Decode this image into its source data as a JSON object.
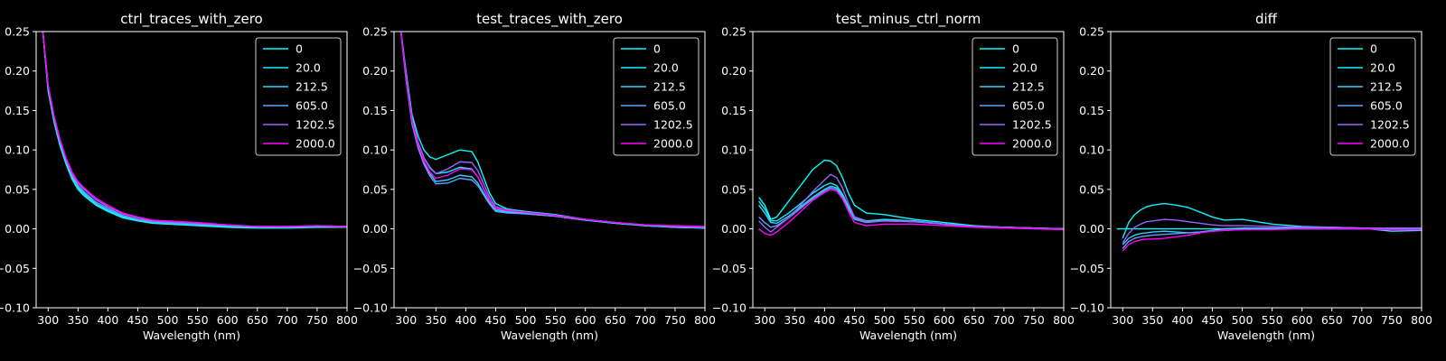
{
  "chart_data": [
    {
      "type": "line",
      "title": "ctrl_traces_with_zero",
      "xlabel": "Wavelength (nm)",
      "ylabel": "",
      "xlim": [
        280,
        800
      ],
      "ylim": [
        -0.1,
        0.25
      ],
      "xticks": [
        300,
        350,
        400,
        450,
        500,
        550,
        600,
        650,
        700,
        750,
        800
      ],
      "yticks": [
        -0.1,
        -0.05,
        0.0,
        0.05,
        0.1,
        0.15,
        0.2,
        0.25
      ],
      "ytick_labels": [
        "−0.10",
        "−0.05",
        "0.00",
        "0.05",
        "0.10",
        "0.15",
        "0.20",
        "0.25"
      ],
      "legend": "top-right",
      "x": [
        290,
        300,
        310,
        320,
        330,
        340,
        350,
        360,
        380,
        400,
        425,
        450,
        475,
        500,
        550,
        600,
        650,
        700,
        750,
        800
      ],
      "series": [
        {
          "name": "0",
          "color": "#00ffff",
          "values": [
            0.26,
            0.175,
            0.135,
            0.105,
            0.082,
            0.063,
            0.05,
            0.042,
            0.03,
            0.022,
            0.014,
            0.01,
            0.007,
            0.006,
            0.004,
            0.002,
            0.001,
            0.001,
            0.002,
            0.002
          ]
        },
        {
          "name": "20.0",
          "color": "#10efff",
          "values": [
            0.26,
            0.177,
            0.137,
            0.107,
            0.084,
            0.065,
            0.052,
            0.044,
            0.031,
            0.023,
            0.015,
            0.011,
            0.008,
            0.007,
            0.005,
            0.003,
            0.002,
            0.002,
            0.003,
            0.002
          ]
        },
        {
          "name": "212.5",
          "color": "#30cfff",
          "values": [
            0.26,
            0.178,
            0.138,
            0.108,
            0.085,
            0.066,
            0.053,
            0.045,
            0.032,
            0.024,
            0.016,
            0.011,
            0.008,
            0.007,
            0.005,
            0.004,
            0.002,
            0.002,
            0.003,
            0.002
          ]
        },
        {
          "name": "605.0",
          "color": "#60a0ff",
          "values": [
            0.26,
            0.18,
            0.14,
            0.11,
            0.087,
            0.068,
            0.055,
            0.047,
            0.034,
            0.026,
            0.017,
            0.012,
            0.009,
            0.008,
            0.006,
            0.004,
            0.003,
            0.002,
            0.004,
            0.003
          ]
        },
        {
          "name": "1202.5",
          "color": "#a060ff",
          "values": [
            0.26,
            0.182,
            0.142,
            0.112,
            0.089,
            0.07,
            0.058,
            0.05,
            0.037,
            0.028,
            0.019,
            0.014,
            0.01,
            0.009,
            0.007,
            0.005,
            0.003,
            0.003,
            0.004,
            0.003
          ]
        },
        {
          "name": "2000.0",
          "color": "#ff00ff",
          "values": [
            0.26,
            0.183,
            0.143,
            0.113,
            0.09,
            0.072,
            0.06,
            0.052,
            0.039,
            0.03,
            0.02,
            0.015,
            0.011,
            0.01,
            0.008,
            0.005,
            0.003,
            0.003,
            0.004,
            0.003
          ]
        }
      ]
    },
    {
      "type": "line",
      "title": "test_traces_with_zero",
      "xlabel": "Wavelength (nm)",
      "ylabel": "",
      "xlim": [
        280,
        800
      ],
      "ylim": [
        -0.1,
        0.25
      ],
      "xticks": [
        300,
        350,
        400,
        450,
        500,
        550,
        600,
        650,
        700,
        750,
        800
      ],
      "yticks": [
        -0.1,
        -0.05,
        0.0,
        0.05,
        0.1,
        0.15,
        0.2,
        0.25
      ],
      "ytick_labels": [
        "−0.10",
        "−0.05",
        "0.00",
        "0.05",
        "0.10",
        "0.15",
        "0.20",
        "0.25"
      ],
      "legend": "top-right",
      "x": [
        290,
        300,
        310,
        320,
        330,
        340,
        350,
        370,
        390,
        410,
        420,
        430,
        440,
        450,
        470,
        500,
        550,
        600,
        650,
        700,
        750,
        800
      ],
      "series": [
        {
          "name": "0",
          "color": "#00ffff",
          "values": [
            0.26,
            0.2,
            0.145,
            0.118,
            0.1,
            0.091,
            0.088,
            0.094,
            0.1,
            0.098,
            0.085,
            0.065,
            0.045,
            0.032,
            0.025,
            0.022,
            0.018,
            0.012,
            0.008,
            0.004,
            0.002,
            0.001
          ]
        },
        {
          "name": "20.0",
          "color": "#10efff",
          "values": [
            0.26,
            0.195,
            0.14,
            0.11,
            0.09,
            0.078,
            0.07,
            0.072,
            0.078,
            0.076,
            0.066,
            0.05,
            0.035,
            0.025,
            0.022,
            0.02,
            0.016,
            0.011,
            0.007,
            0.004,
            0.002,
            0.001
          ]
        },
        {
          "name": "212.5",
          "color": "#30cfff",
          "values": [
            0.26,
            0.19,
            0.135,
            0.105,
            0.084,
            0.07,
            0.06,
            0.062,
            0.068,
            0.066,
            0.058,
            0.045,
            0.032,
            0.023,
            0.021,
            0.019,
            0.016,
            0.011,
            0.007,
            0.004,
            0.002,
            0.001
          ]
        },
        {
          "name": "605.0",
          "color": "#60a0ff",
          "values": [
            0.26,
            0.19,
            0.133,
            0.103,
            0.082,
            0.067,
            0.057,
            0.058,
            0.064,
            0.062,
            0.055,
            0.043,
            0.031,
            0.022,
            0.02,
            0.019,
            0.016,
            0.011,
            0.008,
            0.005,
            0.003,
            0.002
          ]
        },
        {
          "name": "1202.5",
          "color": "#a060ff",
          "values": [
            0.26,
            0.195,
            0.14,
            0.11,
            0.09,
            0.077,
            0.07,
            0.076,
            0.085,
            0.084,
            0.074,
            0.057,
            0.04,
            0.028,
            0.024,
            0.021,
            0.017,
            0.012,
            0.008,
            0.005,
            0.003,
            0.002
          ]
        },
        {
          "name": "2000.0",
          "color": "#ff00ff",
          "values": [
            0.26,
            0.193,
            0.137,
            0.107,
            0.086,
            0.072,
            0.064,
            0.068,
            0.076,
            0.075,
            0.066,
            0.051,
            0.036,
            0.026,
            0.023,
            0.021,
            0.017,
            0.012,
            0.008,
            0.005,
            0.004,
            0.003
          ]
        }
      ]
    },
    {
      "type": "line",
      "title": "test_minus_ctrl_norm",
      "xlabel": "Wavelength (nm)",
      "ylabel": "",
      "xlim": [
        280,
        800
      ],
      "ylim": [
        -0.1,
        0.25
      ],
      "xticks": [
        300,
        350,
        400,
        450,
        500,
        550,
        600,
        650,
        700,
        750,
        800
      ],
      "yticks": [
        -0.1,
        -0.05,
        0.0,
        0.05,
        0.1,
        0.15,
        0.2,
        0.25
      ],
      "ytick_labels": [
        "−0.10",
        "−0.05",
        "0.00",
        "0.05",
        "0.10",
        "0.15",
        "0.20",
        "0.25"
      ],
      "legend": "top-right",
      "x": [
        290,
        300,
        310,
        320,
        340,
        360,
        380,
        400,
        410,
        420,
        430,
        440,
        450,
        470,
        500,
        550,
        600,
        650,
        700,
        750,
        800
      ],
      "series": [
        {
          "name": "0",
          "color": "#00ffff",
          "values": [
            0.04,
            0.03,
            0.012,
            0.015,
            0.035,
            0.055,
            0.075,
            0.087,
            0.086,
            0.08,
            0.065,
            0.045,
            0.03,
            0.02,
            0.018,
            0.012,
            0.008,
            0.004,
            0.002,
            0.001,
            0.0
          ]
        },
        {
          "name": "20.0",
          "color": "#10efff",
          "values": [
            0.035,
            0.025,
            0.01,
            0.01,
            0.02,
            0.032,
            0.045,
            0.055,
            0.058,
            0.055,
            0.044,
            0.028,
            0.015,
            0.01,
            0.012,
            0.01,
            0.006,
            0.003,
            0.002,
            0.001,
            0.0
          ]
        },
        {
          "name": "212.5",
          "color": "#30cfff",
          "values": [
            0.03,
            0.02,
            0.008,
            0.007,
            0.016,
            0.028,
            0.04,
            0.05,
            0.054,
            0.052,
            0.042,
            0.026,
            0.013,
            0.009,
            0.011,
            0.01,
            0.006,
            0.003,
            0.002,
            0.001,
            0.0
          ]
        },
        {
          "name": "605.0",
          "color": "#60a0ff",
          "values": [
            0.015,
            0.008,
            0.002,
            0.004,
            0.014,
            0.026,
            0.038,
            0.048,
            0.052,
            0.05,
            0.04,
            0.025,
            0.012,
            0.008,
            0.01,
            0.009,
            0.006,
            0.003,
            0.002,
            0.001,
            0.0
          ]
        },
        {
          "name": "1202.5",
          "color": "#a060ff",
          "values": [
            0.01,
            0.002,
            -0.004,
            0.002,
            0.014,
            0.03,
            0.047,
            0.062,
            0.069,
            0.065,
            0.052,
            0.032,
            0.015,
            0.009,
            0.01,
            0.009,
            0.006,
            0.003,
            0.002,
            0.001,
            0.0
          ]
        },
        {
          "name": "2000.0",
          "color": "#ff00ff",
          "values": [
            0.0,
            -0.006,
            -0.008,
            -0.004,
            0.008,
            0.022,
            0.036,
            0.046,
            0.05,
            0.048,
            0.038,
            0.022,
            0.008,
            0.004,
            0.006,
            0.006,
            0.004,
            0.002,
            0.001,
            0.0,
            -0.001
          ]
        }
      ]
    },
    {
      "type": "line",
      "title": "diff",
      "xlabel": "Wavelength (nm)",
      "ylabel": "",
      "xlim": [
        280,
        800
      ],
      "ylim": [
        -0.1,
        0.25
      ],
      "xticks": [
        300,
        350,
        400,
        450,
        500,
        550,
        600,
        650,
        700,
        750,
        800
      ],
      "yticks": [
        -0.1,
        -0.05,
        0.0,
        0.05,
        0.1,
        0.15,
        0.2,
        0.25
      ],
      "ytick_labels": [
        "−0.10",
        "−0.05",
        "0.00",
        "0.05",
        "0.10",
        "0.15",
        "0.20",
        "0.25"
      ],
      "legend": "top-right",
      "x": [
        290,
        300,
        310,
        320,
        330,
        340,
        350,
        370,
        390,
        410,
        430,
        450,
        470,
        500,
        550,
        600,
        650,
        700,
        750,
        800
      ],
      "series": [
        {
          "name": "0",
          "color": "#00ffff",
          "values": [
            0.0,
            0.0,
            0.0,
            0.0,
            0.0,
            0.0,
            0.0,
            0.0,
            0.0,
            0.0,
            0.0,
            0.0,
            0.0,
            0.0,
            0.0,
            0.0,
            0.0,
            0.0,
            0.0,
            0.0
          ]
        },
        {
          "name": "20.0",
          "color": "#10efff",
          "values": [
            null,
            -0.012,
            0.008,
            0.018,
            0.024,
            0.028,
            0.03,
            0.032,
            0.03,
            0.027,
            0.021,
            0.015,
            0.011,
            0.012,
            0.006,
            0.003,
            0.002,
            0.001,
            -0.003,
            -0.002
          ]
        },
        {
          "name": "212.5",
          "color": "#30cfff",
          "values": [
            null,
            -0.02,
            -0.012,
            -0.008,
            -0.006,
            -0.005,
            -0.004,
            -0.003,
            -0.004,
            -0.005,
            -0.004,
            -0.002,
            0.0,
            0.001,
            0.001,
            0.001,
            0.001,
            0.0,
            0.0,
            0.0
          ]
        },
        {
          "name": "605.0",
          "color": "#60a0ff",
          "values": [
            null,
            -0.025,
            -0.016,
            -0.012,
            -0.01,
            -0.009,
            -0.008,
            -0.007,
            -0.006,
            -0.005,
            -0.004,
            -0.003,
            -0.002,
            -0.001,
            0.0,
            0.0,
            0.0,
            0.0,
            0.0,
            0.0
          ]
        },
        {
          "name": "1202.5",
          "color": "#a060ff",
          "values": [
            null,
            -0.018,
            -0.006,
            0.002,
            0.006,
            0.009,
            0.01,
            0.012,
            0.011,
            0.009,
            0.007,
            0.005,
            0.004,
            0.004,
            0.003,
            0.002,
            0.002,
            0.001,
            0.001,
            0.001
          ]
        },
        {
          "name": "2000.0",
          "color": "#ff00ff",
          "values": [
            null,
            -0.028,
            -0.02,
            -0.016,
            -0.014,
            -0.013,
            -0.013,
            -0.012,
            -0.01,
            -0.008,
            -0.005,
            -0.003,
            -0.002,
            -0.001,
            -0.001,
            0.0,
            0.0,
            0.0,
            -0.001,
            -0.001
          ]
        }
      ]
    }
  ]
}
